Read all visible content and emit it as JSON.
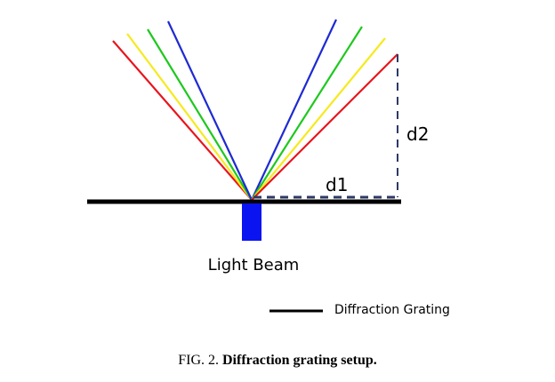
{
  "labels": {
    "d2": "d2",
    "d1": "d1",
    "light_beam": "Light Beam"
  },
  "legend": {
    "label": "Diffraction Grating"
  },
  "caption": {
    "prefix": "FIG. 2.",
    "title": "Diffraction grating setup."
  }
}
